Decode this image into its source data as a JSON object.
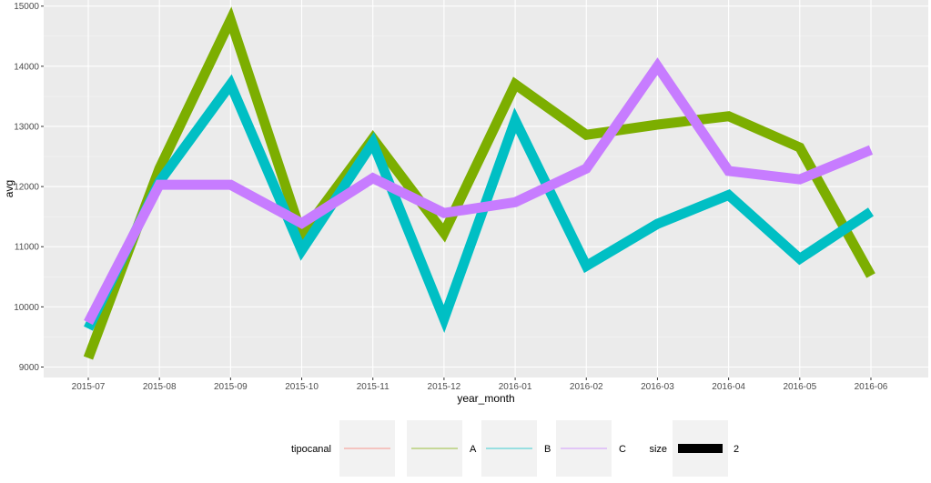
{
  "chart_data": {
    "type": "line",
    "title": "",
    "xlabel": "year_month",
    "ylabel": "avg",
    "x": [
      "2015-07",
      "2015-08",
      "2015-09",
      "2015-10",
      "2015-11",
      "2015-12",
      "2016-01",
      "2016-02",
      "2016-03",
      "2016-04",
      "2016-05",
      "2016-06"
    ],
    "yticks": [
      9000,
      10000,
      11000,
      12000,
      13000,
      14000,
      15000
    ],
    "ylim": [
      8830,
      15100
    ],
    "grid": true,
    "legend_position": "bottom",
    "series": [
      {
        "name": "A",
        "color": "#7CAE00",
        "values": [
          9150,
          12300,
          14770,
          11200,
          12800,
          11230,
          13700,
          12860,
          13030,
          13170,
          12650,
          10520
        ]
      },
      {
        "name": "B",
        "color": "#00BFC4",
        "values": [
          9640,
          12080,
          13700,
          10940,
          12730,
          9800,
          13100,
          10680,
          11380,
          11860,
          10800,
          11580
        ]
      },
      {
        "name": "C",
        "color": "#C77CFF",
        "values": [
          9740,
          12030,
          12030,
          11390,
          12140,
          11560,
          11740,
          12300,
          14000,
          12260,
          12120,
          12610
        ]
      }
    ],
    "legend": {
      "color_title": "tipocanal",
      "color_keys": [
        {
          "label": "",
          "color": "#F8766D"
        },
        {
          "label": "A",
          "color": "#7CAE00"
        },
        {
          "label": "B",
          "color": "#00BFC4"
        },
        {
          "label": "C",
          "color": "#C77CFF"
        }
      ],
      "size_title": "size",
      "size_label": "2"
    }
  }
}
